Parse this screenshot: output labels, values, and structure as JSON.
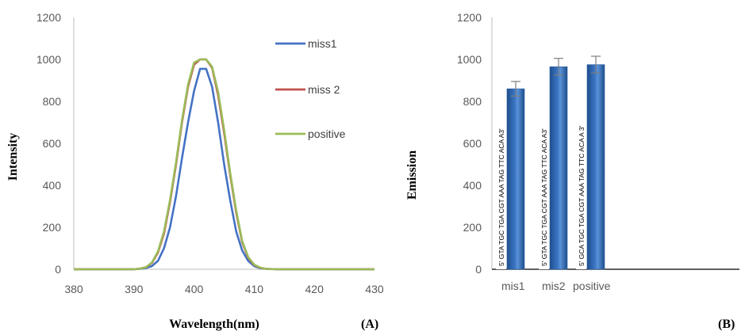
{
  "chart_data": [
    {
      "type": "line",
      "panel_label": "(A)",
      "xlabel": "Wavelength(nm)",
      "ylabel": "Intensity",
      "xlim": [
        380,
        430
      ],
      "ylim": [
        0,
        1200
      ],
      "xticks": [
        380,
        390,
        400,
        410,
        420,
        430
      ],
      "yticks": [
        0,
        200,
        400,
        600,
        800,
        1000,
        1200
      ],
      "grid": false,
      "legend_position": "right",
      "series": [
        {
          "name": "miss1",
          "color": "#4472C4",
          "x": [
            380,
            388,
            390,
            391,
            392,
            393,
            394,
            395,
            396,
            397,
            398,
            399,
            400,
            401,
            402,
            403,
            404,
            405,
            406,
            407,
            408,
            409,
            410,
            411,
            412,
            414,
            420,
            430
          ],
          "y": [
            0,
            0,
            0,
            2,
            6,
            15,
            40,
            100,
            200,
            350,
            530,
            700,
            850,
            955,
            955,
            870,
            700,
            500,
            330,
            180,
            90,
            40,
            15,
            5,
            2,
            0,
            0,
            0
          ]
        },
        {
          "name": "miss 2",
          "color": "#C0504D",
          "x": [
            380,
            388,
            390,
            391,
            392,
            393,
            394,
            395,
            396,
            397,
            398,
            399,
            400,
            401,
            402,
            403,
            404,
            405,
            406,
            407,
            408,
            409,
            410,
            411,
            412,
            414,
            420,
            430
          ],
          "y": [
            0,
            0,
            0,
            3,
            10,
            30,
            80,
            170,
            320,
            500,
            700,
            870,
            975,
            1000,
            1000,
            960,
            830,
            650,
            450,
            270,
            130,
            55,
            20,
            7,
            2,
            0,
            0,
            0
          ]
        },
        {
          "name": "positive",
          "color": "#9BBB59",
          "x": [
            380,
            388,
            390,
            391,
            392,
            393,
            394,
            395,
            396,
            397,
            398,
            399,
            400,
            401,
            402,
            403,
            404,
            405,
            406,
            407,
            408,
            409,
            410,
            411,
            412,
            414,
            420,
            430
          ],
          "y": [
            0,
            0,
            0,
            3,
            10,
            32,
            85,
            180,
            330,
            510,
            710,
            880,
            985,
            1000,
            1000,
            965,
            845,
            665,
            460,
            280,
            135,
            58,
            22,
            8,
            2,
            0,
            0,
            0
          ]
        }
      ]
    },
    {
      "type": "bar",
      "panel_label": "(B)",
      "xlabel": "",
      "ylabel": "Emission",
      "ylim": [
        0,
        1200
      ],
      "yticks": [
        0,
        200,
        400,
        600,
        800,
        1000,
        1200
      ],
      "grid": false,
      "color": "#3A75C4",
      "categories": [
        "mis1",
        "mis2",
        "positive"
      ],
      "values": [
        860,
        965,
        975
      ],
      "error": [
        35,
        40,
        40
      ],
      "bar_annotations": [
        "5' GTA  TGC  TGA  CGT  AAA  TAG  TTC  ACA  A3'",
        "5' GTA  TGC  TGA  CGT AAA  TAG TTC  ACA  A3'",
        "5' GCA TGC TGA CGT AAA TAG TTC ACA A 3'"
      ]
    }
  ]
}
